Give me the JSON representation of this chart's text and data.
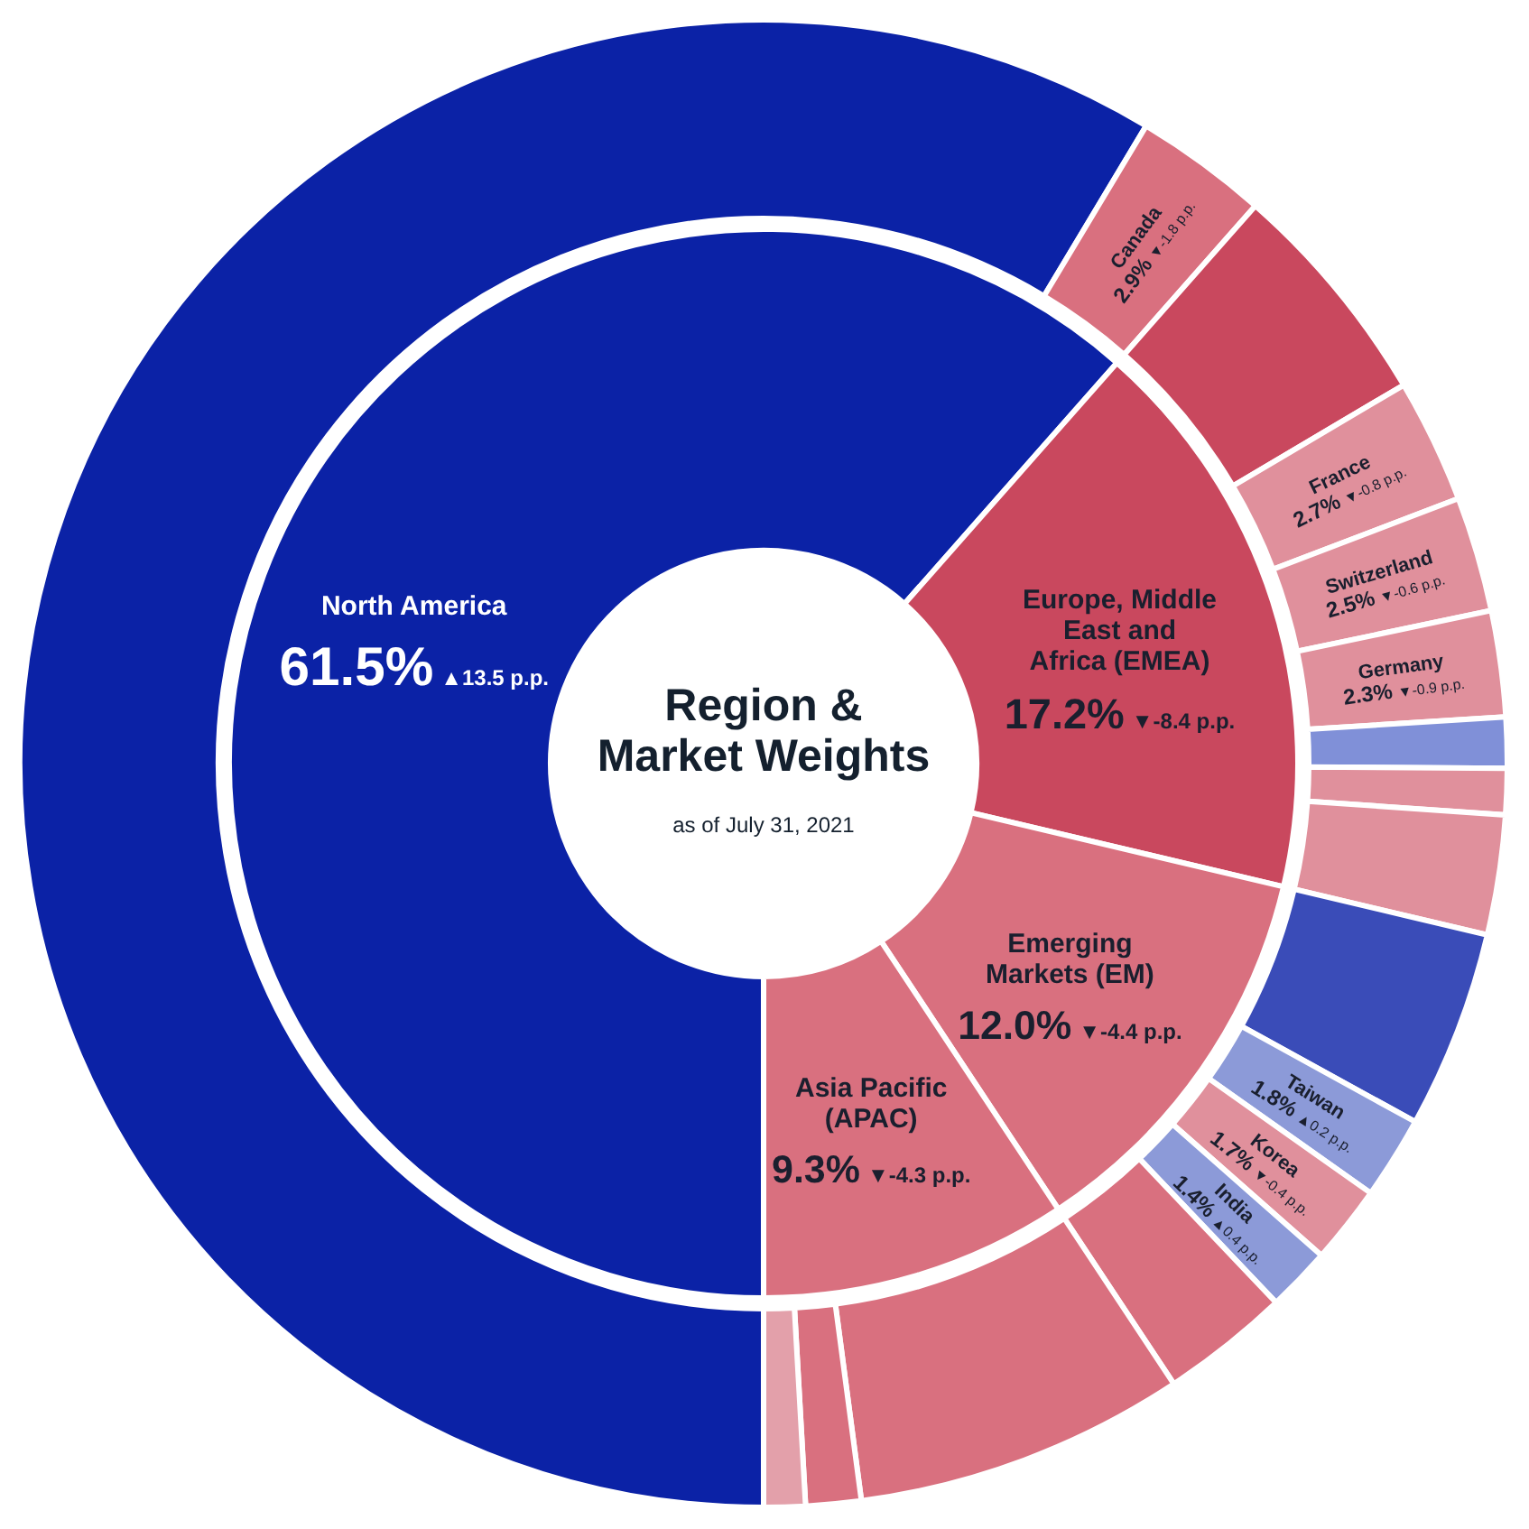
{
  "chart_data": [
    {
      "type": "donut",
      "title": "Region & Market Weights",
      "subtitle": "as of July 31, 2021",
      "categories": [
        "North America",
        "Europe, Middle East and Africa (EMEA)",
        "Emerging Markets (EM)",
        "Asia Pacific (APAC)"
      ],
      "values": [
        61.5,
        17.2,
        12.0,
        9.3
      ],
      "colors": [
        "#0b22a6",
        "#c9485e",
        "#d9707f",
        "#d9707f"
      ],
      "value_labels": [
        "61.5%",
        "17.2%",
        "12.0%",
        "9.3%"
      ],
      "annotations": [
        {
          "text": "▲13.5 p.p.",
          "x": "North America"
        },
        {
          "text": "▼-8.4 p.p.",
          "x": "Europe, Middle East and Africa (EMEA)"
        },
        {
          "text": "▼-4.4 p.p.",
          "x": "Emerging Markets (EM)"
        },
        {
          "text": "▼-4.3 p.p.",
          "x": "Asia Pacific (APAC)"
        }
      ]
    },
    {
      "type": "donut",
      "categories": [
        null,
        "Canada",
        null,
        "France",
        "Switzerland",
        "Germany",
        null,
        null,
        null,
        null,
        "Taiwan",
        "Korea",
        "India",
        null,
        null,
        null,
        null
      ],
      "values": [
        58.6,
        2.9,
        5.0,
        2.7,
        2.5,
        2.3,
        1.1,
        1.0,
        2.6,
        4.3,
        1.8,
        1.7,
        1.4,
        2.8,
        7.2,
        1.2,
        0.9
      ],
      "colors": [
        "#0b22a6",
        "#d9707f",
        "#c9485e",
        "#e0909c",
        "#e0909c",
        "#e0909c",
        "#8090d8",
        "#e0909c",
        "#e0909c",
        "#3a4cb8",
        "#8c9ad8",
        "#e0909c",
        "#8c9ad8",
        "#d9707f",
        "#d9707f",
        "#d9707f",
        "#e3a0aa"
      ],
      "value_labels": [
        null,
        "2.9%",
        null,
        "2.7%",
        "2.5%",
        "2.3%",
        null,
        null,
        null,
        null,
        "1.8%",
        "1.7%",
        "1.4%",
        null,
        null,
        null,
        null
      ],
      "annotations": [
        {
          "text": "▼-1.8 p.p.",
          "x": "Canada"
        },
        {
          "text": "▼-0.8 p.p.",
          "x": "France"
        },
        {
          "text": "▼-0.6 p.p.",
          "x": "Switzerland"
        },
        {
          "text": "▼-0.9 p.p.",
          "x": "Germany"
        },
        {
          "text": "▲0.2 p.p.",
          "x": "Taiwan"
        },
        {
          "text": "▼-0.4 p.p.",
          "x": "Korea"
        },
        {
          "text": "▲0.4 p.p.",
          "x": "India"
        }
      ]
    }
  ]
}
